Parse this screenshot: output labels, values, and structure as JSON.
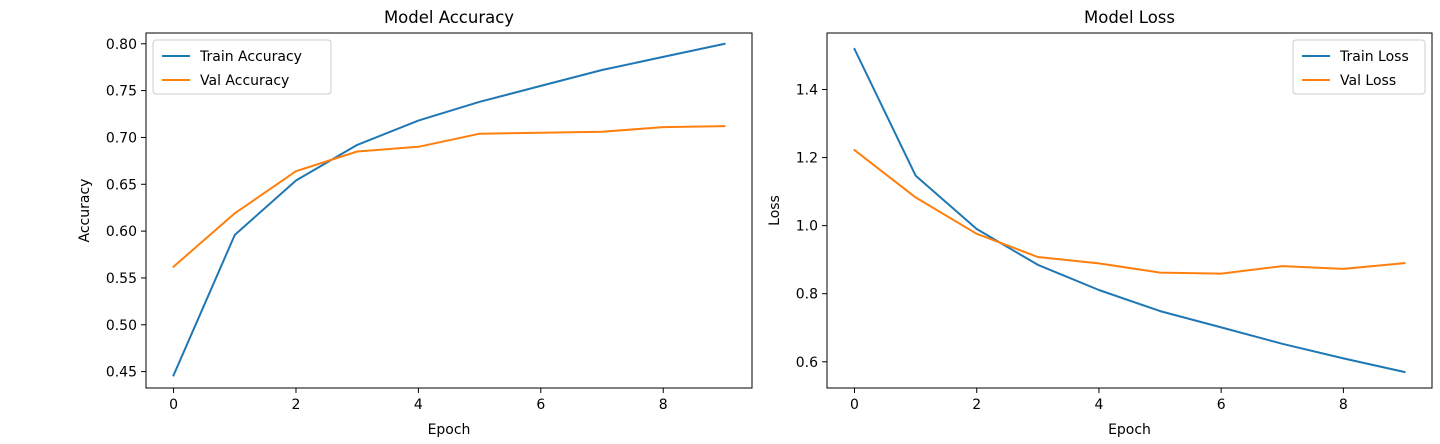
{
  "colors": {
    "blue": "#1f77b4",
    "orange": "#ff7f0e"
  },
  "chart_data": [
    {
      "type": "line",
      "title": "Model Accuracy",
      "xlabel": "Epoch",
      "ylabel": "Accuracy",
      "x": [
        0,
        1,
        2,
        3,
        4,
        5,
        6,
        7,
        8,
        9
      ],
      "xlim": [
        -0.45,
        9.45
      ],
      "ylim": [
        0.4325,
        0.8115
      ],
      "xticks": [
        0,
        2,
        4,
        6,
        8
      ],
      "yticks": [
        0.45,
        0.5,
        0.55,
        0.6,
        0.65,
        0.7,
        0.75,
        0.8
      ],
      "xtick_labels": [
        "0",
        "2",
        "4",
        "6",
        "8"
      ],
      "ytick_labels": [
        "0.45",
        "0.50",
        "0.55",
        "0.60",
        "0.65",
        "0.70",
        "0.75",
        "0.80"
      ],
      "grid": false,
      "legend_position": "upper left",
      "series": [
        {
          "name": "Train Accuracy",
          "color": "#1f77b4",
          "values": [
            0.446,
            0.596,
            0.654,
            0.692,
            0.718,
            0.738,
            0.755,
            0.772,
            0.786,
            0.8
          ]
        },
        {
          "name": "Val Accuracy",
          "color": "#ff7f0e",
          "values": [
            0.562,
            0.619,
            0.664,
            0.685,
            0.69,
            0.704,
            0.705,
            0.706,
            0.711,
            0.712
          ]
        }
      ]
    },
    {
      "type": "line",
      "title": "Model Loss",
      "xlabel": "Epoch",
      "ylabel": "Loss",
      "x": [
        0,
        1,
        2,
        3,
        4,
        5,
        6,
        7,
        8,
        9
      ],
      "xlim": [
        -0.45,
        9.45
      ],
      "ylim": [
        0.523,
        1.566
      ],
      "xticks": [
        0,
        2,
        4,
        6,
        8
      ],
      "yticks": [
        0.6,
        0.8,
        1.0,
        1.2,
        1.4
      ],
      "xtick_labels": [
        "0",
        "2",
        "4",
        "6",
        "8"
      ],
      "ytick_labels": [
        "0.6",
        "0.8",
        "1.0",
        "1.2",
        "1.4"
      ],
      "grid": false,
      "legend_position": "upper right",
      "series": [
        {
          "name": "Train Loss",
          "color": "#1f77b4",
          "values": [
            1.519,
            1.147,
            0.99,
            0.885,
            0.811,
            0.749,
            0.701,
            0.653,
            0.61,
            0.57
          ]
        },
        {
          "name": "Val Loss",
          "color": "#ff7f0e",
          "values": [
            1.222,
            1.083,
            0.976,
            0.908,
            0.889,
            0.862,
            0.859,
            0.881,
            0.873,
            0.89
          ]
        }
      ]
    }
  ]
}
